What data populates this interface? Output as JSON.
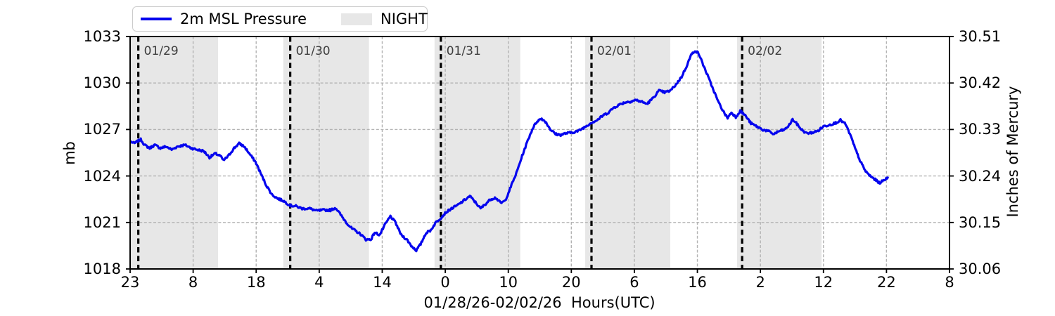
{
  "chart_data": {
    "type": "line",
    "x_axis": {
      "label": "01/28/26-02/02/26  Hours(UTC)",
      "range": [
        0,
        130
      ],
      "ticks": [
        {
          "pos": 0,
          "label": "23"
        },
        {
          "pos": 10,
          "label": "8"
        },
        {
          "pos": 20,
          "label": "18"
        },
        {
          "pos": 30,
          "label": "4"
        },
        {
          "pos": 40,
          "label": "14"
        },
        {
          "pos": 50,
          "label": "0"
        },
        {
          "pos": 60,
          "label": "10"
        },
        {
          "pos": 70,
          "label": "20"
        },
        {
          "pos": 80,
          "label": "6"
        },
        {
          "pos": 90,
          "label": "16"
        },
        {
          "pos": 100,
          "label": "2"
        },
        {
          "pos": 110,
          "label": "12"
        },
        {
          "pos": 120,
          "label": "22"
        },
        {
          "pos": 130,
          "label": "8"
        }
      ]
    },
    "y_axis_left": {
      "label": "mb",
      "range": [
        1018,
        1033
      ],
      "ticks": [
        {
          "value": 1018,
          "label": "1018"
        },
        {
          "value": 1021,
          "label": "1021"
        },
        {
          "value": 1024,
          "label": "1024"
        },
        {
          "value": 1027,
          "label": "1027"
        },
        {
          "value": 1030,
          "label": "1030"
        },
        {
          "value": 1033,
          "label": "1033"
        }
      ]
    },
    "y_axis_right": {
      "label": "Inches of Mercury",
      "ticks": [
        {
          "value": 1018,
          "label": "30.06"
        },
        {
          "value": 1021,
          "label": "30.15"
        },
        {
          "value": 1024,
          "label": "30.24"
        },
        {
          "value": 1027,
          "label": "30.33"
        },
        {
          "value": 1030,
          "label": "30.42"
        },
        {
          "value": 1033,
          "label": "30.51"
        }
      ]
    },
    "legend": {
      "position": "top-left",
      "entries": [
        {
          "label": "2m MSL Pressure",
          "type": "line",
          "color": "#0505ee"
        },
        {
          "label": "NIGHT",
          "type": "patch",
          "color": "#e7e7e7"
        }
      ]
    },
    "day_lines": [
      {
        "pos": 1.3,
        "label": "01/29"
      },
      {
        "pos": 25.4,
        "label": "01/30"
      },
      {
        "pos": 49.3,
        "label": "01/31"
      },
      {
        "pos": 73.2,
        "label": "02/01"
      },
      {
        "pos": 97.1,
        "label": "02/02"
      }
    ],
    "night_bands": [
      [
        0,
        13.95
      ],
      [
        24.3,
        37.9
      ],
      [
        48.3,
        61.9
      ],
      [
        72.2,
        85.7
      ],
      [
        96.3,
        109.7
      ]
    ],
    "grid": {
      "style": "dashed",
      "color": "#b3b3b3",
      "vertical": true,
      "horizontal": true
    },
    "colors": {
      "line": "#0505ee",
      "night": "#e7e7e7",
      "day_line": "#000000",
      "spine": "#000000",
      "day_label_text": "#3d3d3d"
    },
    "series": [
      {
        "name": "2m MSL Pressure",
        "units": "mb",
        "points": [
          [
            0.2,
            1026.2
          ],
          [
            0.7,
            1026.1
          ],
          [
            1.2,
            1026.25
          ],
          [
            1.7,
            1026.35
          ],
          [
            2.3,
            1026.0
          ],
          [
            3.1,
            1025.8
          ],
          [
            3.9,
            1026.0
          ],
          [
            4.8,
            1025.8
          ],
          [
            5.7,
            1025.9
          ],
          [
            6.6,
            1025.7
          ],
          [
            7.5,
            1025.9
          ],
          [
            8.7,
            1026.0
          ],
          [
            9.7,
            1025.8
          ],
          [
            10.6,
            1025.7
          ],
          [
            11.7,
            1025.6
          ],
          [
            12.6,
            1025.2
          ],
          [
            13.5,
            1025.45
          ],
          [
            14.3,
            1025.3
          ],
          [
            14.8,
            1025.0
          ],
          [
            15.6,
            1025.3
          ],
          [
            16.5,
            1025.8
          ],
          [
            17.3,
            1026.1
          ],
          [
            18.1,
            1025.9
          ],
          [
            19.0,
            1025.4
          ],
          [
            19.9,
            1024.9
          ],
          [
            20.8,
            1024.1
          ],
          [
            21.6,
            1023.4
          ],
          [
            22.5,
            1022.8
          ],
          [
            23.4,
            1022.55
          ],
          [
            24.3,
            1022.4
          ],
          [
            25.4,
            1022.1
          ],
          [
            26.3,
            1022.05
          ],
          [
            27.3,
            1021.9
          ],
          [
            28.5,
            1021.9
          ],
          [
            29.6,
            1021.75
          ],
          [
            30.7,
            1021.8
          ],
          [
            31.8,
            1021.8
          ],
          [
            32.6,
            1021.95
          ],
          [
            33.4,
            1021.5
          ],
          [
            34.3,
            1021.0
          ],
          [
            35.2,
            1020.6
          ],
          [
            36.0,
            1020.4
          ],
          [
            36.7,
            1020.2
          ],
          [
            37.4,
            1019.9
          ],
          [
            38.2,
            1019.9
          ],
          [
            38.8,
            1020.35
          ],
          [
            39.6,
            1020.2
          ],
          [
            40.5,
            1020.9
          ],
          [
            41.3,
            1021.4
          ],
          [
            42.1,
            1021.0
          ],
          [
            43.0,
            1020.2
          ],
          [
            43.9,
            1019.9
          ],
          [
            44.6,
            1019.5
          ],
          [
            45.4,
            1019.2
          ],
          [
            46.1,
            1019.6
          ],
          [
            46.9,
            1020.3
          ],
          [
            47.7,
            1020.5
          ],
          [
            48.5,
            1021.0
          ],
          [
            49.3,
            1021.3
          ],
          [
            50.1,
            1021.65
          ],
          [
            51.0,
            1021.9
          ],
          [
            51.9,
            1022.1
          ],
          [
            52.9,
            1022.4
          ],
          [
            53.9,
            1022.7
          ],
          [
            54.8,
            1022.3
          ],
          [
            55.6,
            1021.9
          ],
          [
            56.4,
            1022.2
          ],
          [
            57.2,
            1022.5
          ],
          [
            58.0,
            1022.6
          ],
          [
            58.8,
            1022.25
          ],
          [
            59.5,
            1022.4
          ],
          [
            60.4,
            1023.3
          ],
          [
            61.3,
            1024.2
          ],
          [
            62.2,
            1025.3
          ],
          [
            63.1,
            1026.3
          ],
          [
            63.9,
            1027.1
          ],
          [
            64.6,
            1027.55
          ],
          [
            65.3,
            1027.7
          ],
          [
            65.9,
            1027.5
          ],
          [
            66.7,
            1027.0
          ],
          [
            67.5,
            1026.7
          ],
          [
            68.3,
            1026.65
          ],
          [
            69.1,
            1026.75
          ],
          [
            70.0,
            1026.8
          ],
          [
            71.1,
            1026.9
          ],
          [
            72.3,
            1027.2
          ],
          [
            73.2,
            1027.45
          ],
          [
            74.1,
            1027.6
          ],
          [
            75.0,
            1027.9
          ],
          [
            75.9,
            1028.1
          ],
          [
            76.7,
            1028.4
          ],
          [
            77.6,
            1028.6
          ],
          [
            78.5,
            1028.75
          ],
          [
            79.3,
            1028.8
          ],
          [
            80.2,
            1028.9
          ],
          [
            81.1,
            1028.8
          ],
          [
            82.0,
            1028.65
          ],
          [
            82.9,
            1029.0
          ],
          [
            83.9,
            1029.5
          ],
          [
            84.8,
            1029.4
          ],
          [
            85.7,
            1029.5
          ],
          [
            86.6,
            1029.9
          ],
          [
            87.5,
            1030.4
          ],
          [
            88.3,
            1031.1
          ],
          [
            89.0,
            1031.8
          ],
          [
            89.6,
            1032.1
          ],
          [
            90.2,
            1031.9
          ],
          [
            90.8,
            1031.3
          ],
          [
            91.6,
            1030.5
          ],
          [
            92.4,
            1029.7
          ],
          [
            93.3,
            1028.8
          ],
          [
            94.2,
            1028.1
          ],
          [
            94.8,
            1027.75
          ],
          [
            95.4,
            1028.1
          ],
          [
            96.1,
            1027.8
          ],
          [
            96.8,
            1028.2
          ],
          [
            97.6,
            1027.9
          ],
          [
            98.5,
            1027.4
          ],
          [
            99.4,
            1027.2
          ],
          [
            100.3,
            1027.0
          ],
          [
            101.2,
            1026.9
          ],
          [
            102.1,
            1026.7
          ],
          [
            103.0,
            1026.9
          ],
          [
            103.9,
            1027.0
          ],
          [
            104.6,
            1027.3
          ],
          [
            105.1,
            1027.65
          ],
          [
            105.7,
            1027.4
          ],
          [
            106.5,
            1027.0
          ],
          [
            107.3,
            1026.75
          ],
          [
            108.2,
            1026.8
          ],
          [
            109.1,
            1026.9
          ],
          [
            110.0,
            1027.2
          ],
          [
            110.9,
            1027.3
          ],
          [
            111.8,
            1027.4
          ],
          [
            112.7,
            1027.6
          ],
          [
            113.5,
            1027.35
          ],
          [
            114.3,
            1026.6
          ],
          [
            115.1,
            1025.7
          ],
          [
            115.9,
            1024.9
          ],
          [
            116.7,
            1024.3
          ],
          [
            117.4,
            1024.0
          ],
          [
            118.1,
            1023.8
          ],
          [
            118.9,
            1023.55
          ],
          [
            119.5,
            1023.7
          ],
          [
            120.2,
            1023.9
          ]
        ]
      }
    ]
  }
}
